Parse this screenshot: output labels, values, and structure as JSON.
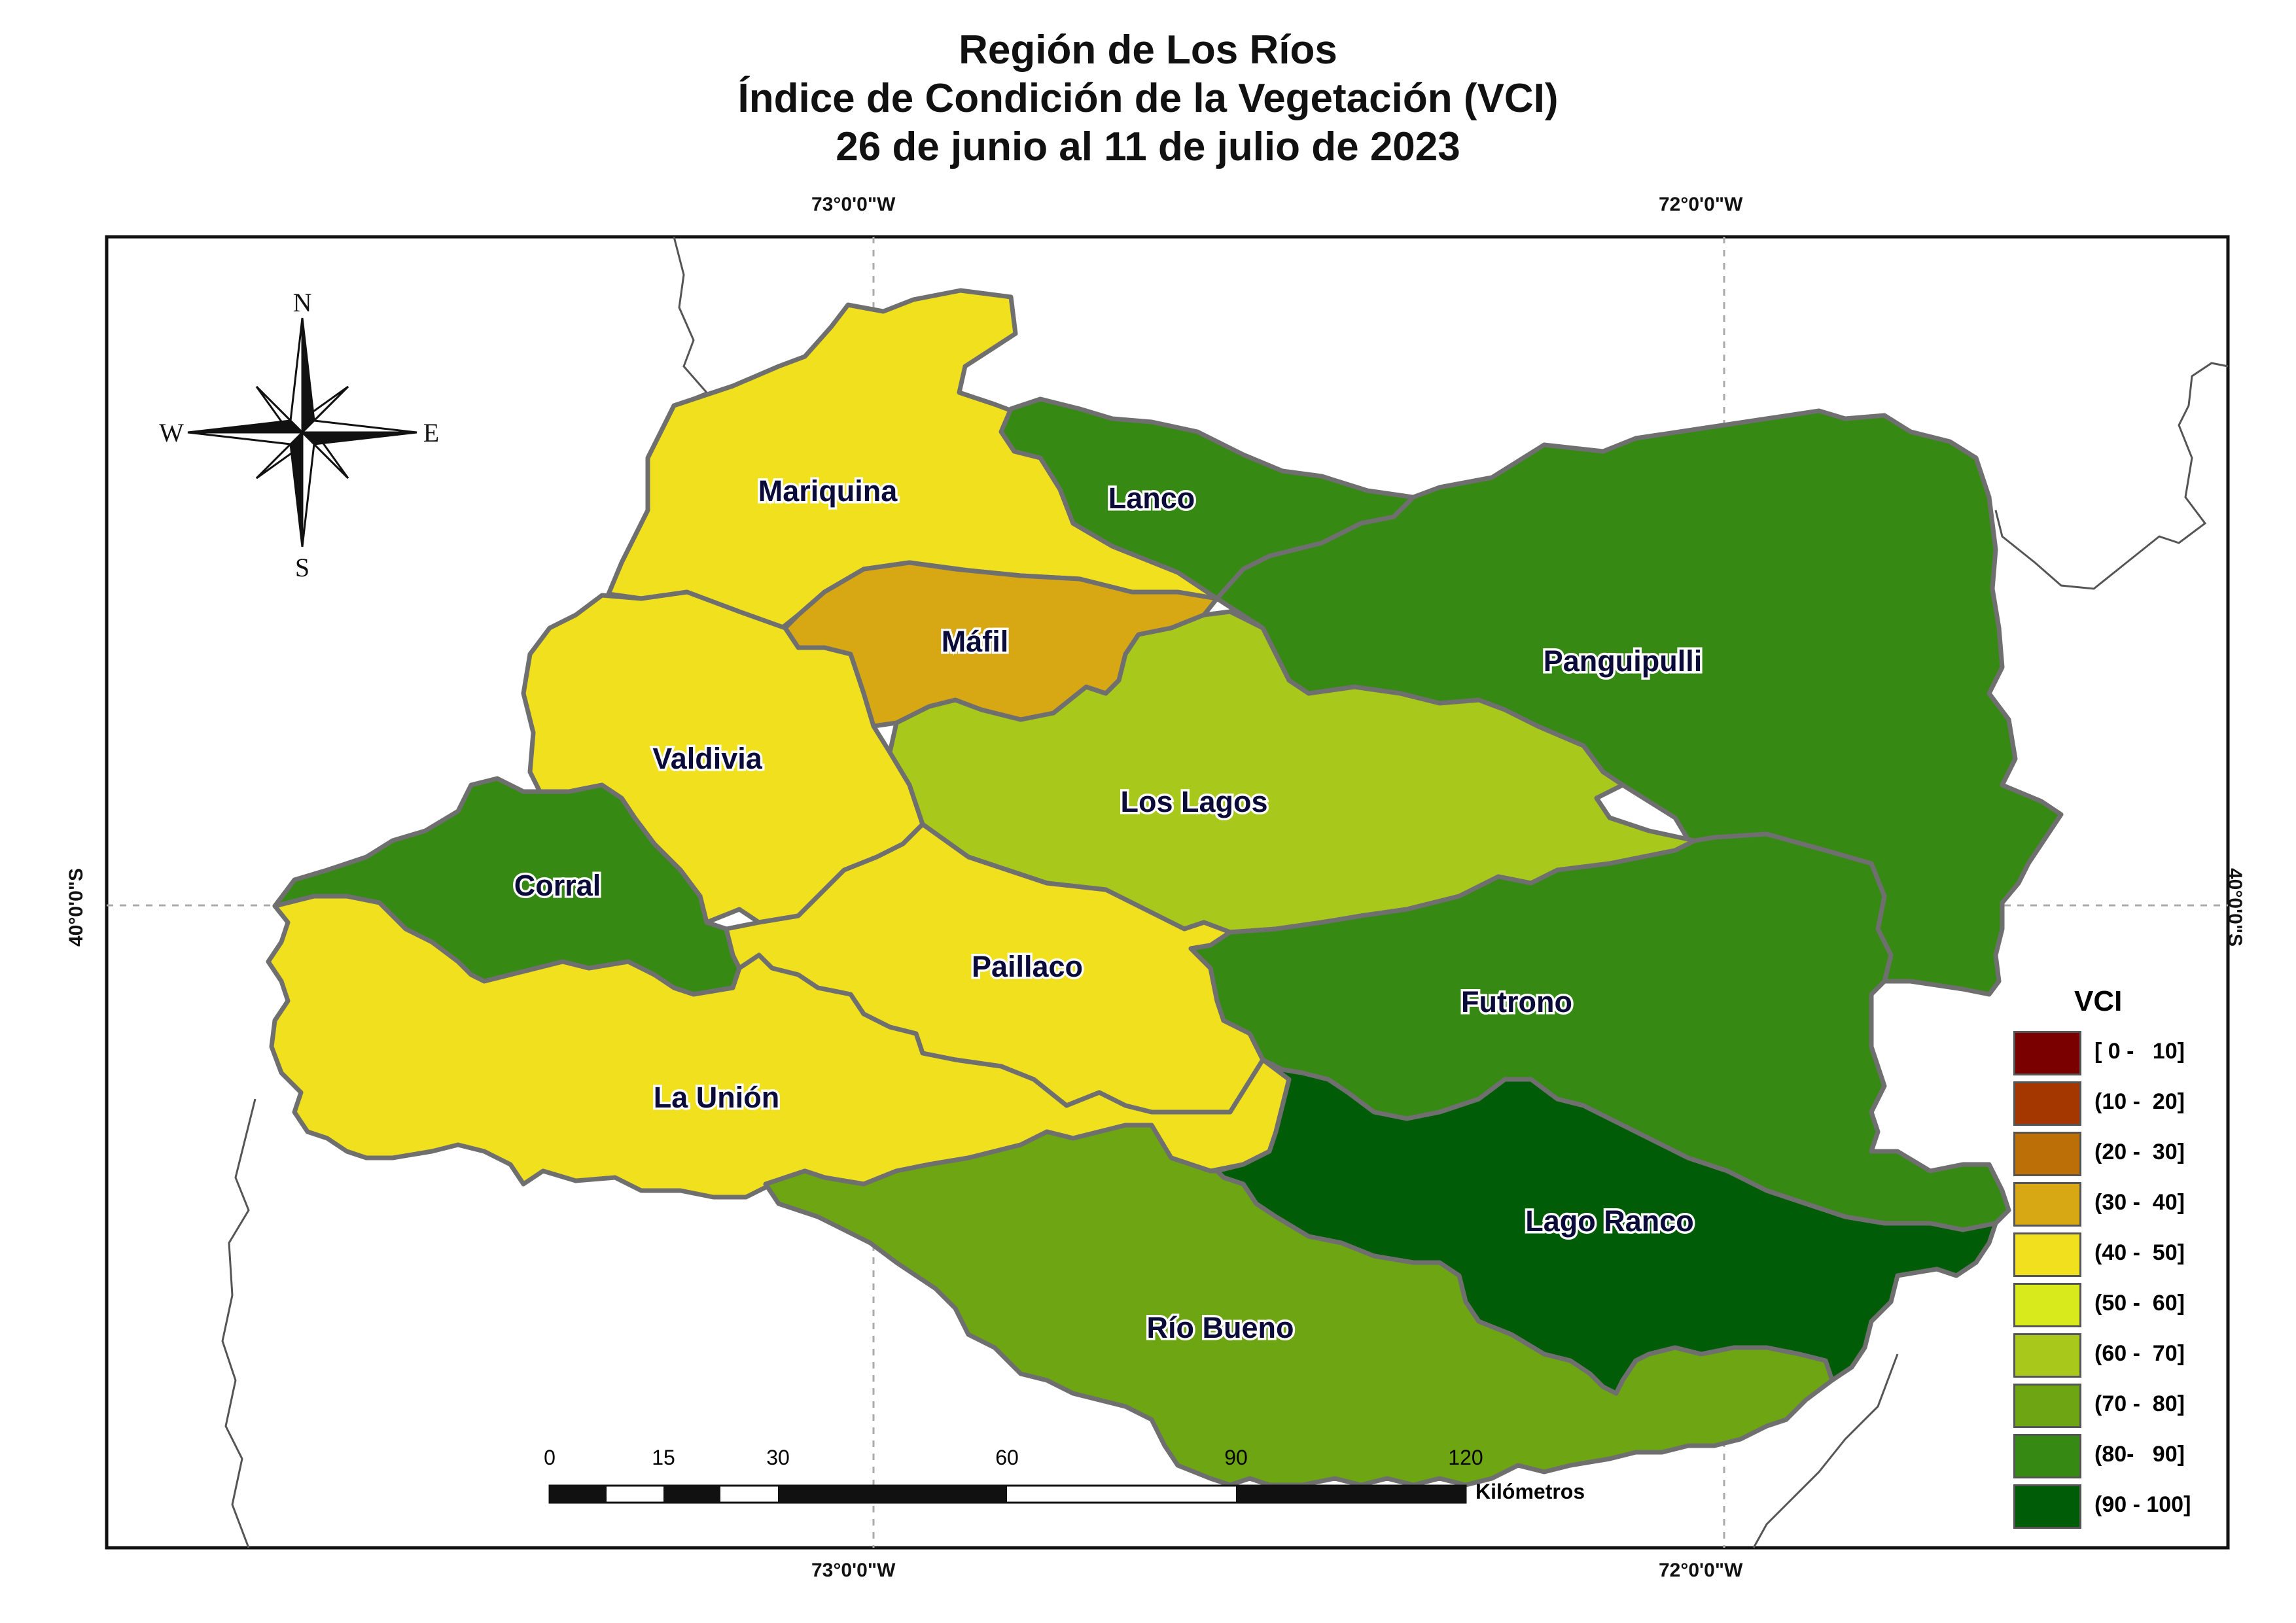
{
  "title": {
    "line1": "Región de Los Ríos",
    "line2": "Índice de Condición de la Vegetación (VCI)",
    "line3": "26 de junio al 11 de julio de 2023"
  },
  "graticule": {
    "lon_left": "73°0'0\"W",
    "lon_right": "72°0'0\"W",
    "lat": "40°0'0\"S"
  },
  "compass": {
    "n": "N",
    "s": "S",
    "e": "E",
    "w": "W"
  },
  "municipalities": [
    {
      "name": "Mariquina",
      "color": "#f0e01e",
      "vci_class": "(40 - 50]"
    },
    {
      "name": "Lanco",
      "color": "#368a13",
      "vci_class": "(80- 90]"
    },
    {
      "name": "Máfil",
      "color": "#d7a814",
      "vci_class": "(30 - 40]"
    },
    {
      "name": "Panguipulli",
      "color": "#368a13",
      "vci_class": "(80- 90]"
    },
    {
      "name": "Valdivia",
      "color": "#f0e01e",
      "vci_class": "(40 - 50]"
    },
    {
      "name": "Los Lagos",
      "color": "#a8c81c",
      "vci_class": "(60 - 70]"
    },
    {
      "name": "Corral",
      "color": "#368a13",
      "vci_class": "(80- 90]"
    },
    {
      "name": "Paillaco",
      "color": "#f0e01e",
      "vci_class": "(40 - 50]"
    },
    {
      "name": "Futrono",
      "color": "#368a13",
      "vci_class": "(80- 90]"
    },
    {
      "name": "La Unión",
      "color": "#f0e01e",
      "vci_class": "(40 - 50]"
    },
    {
      "name": "Lago Ranco",
      "color": "#005c07",
      "vci_class": "(90 - 100]"
    },
    {
      "name": "Río Bueno",
      "color": "#6ea513",
      "vci_class": "(70 - 80]"
    }
  ],
  "legend": {
    "title": "VCI",
    "items": [
      {
        "label": "[ 0 -   10]",
        "color": "#7a0000"
      },
      {
        "label": "(10 -  20]",
        "color": "#a43700"
      },
      {
        "label": "(20 -  30]",
        "color": "#bd6f07"
      },
      {
        "label": "(30 -  40]",
        "color": "#d7a814"
      },
      {
        "label": "(40 -  50]",
        "color": "#f0e01e"
      },
      {
        "label": "(50 -  60]",
        "color": "#d9ea1c"
      },
      {
        "label": "(60 -  70]",
        "color": "#a8c81c"
      },
      {
        "label": "(70 -  80]",
        "color": "#6ea513"
      },
      {
        "label": "(80-   90]",
        "color": "#368a13"
      },
      {
        "label": "(90 - 100]",
        "color": "#005c07"
      }
    ]
  },
  "scale_bar": {
    "ticks": [
      "0",
      "15",
      "30",
      "60",
      "90",
      "120"
    ],
    "unit": "Kilómetros"
  }
}
